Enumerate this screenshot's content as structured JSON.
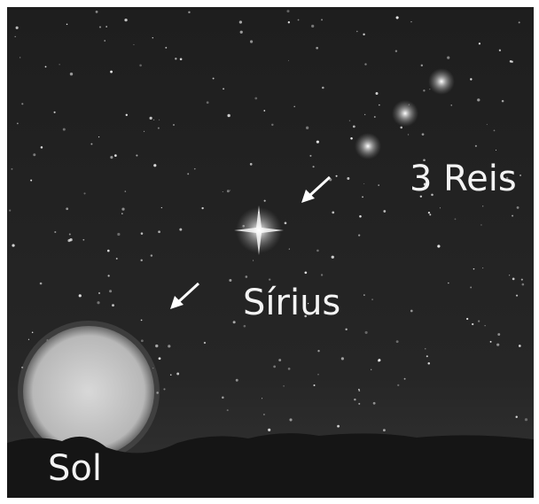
{
  "labels": {
    "three_kings": "3 Reis",
    "sirius": "Sírius",
    "sun": "Sol"
  }
}
